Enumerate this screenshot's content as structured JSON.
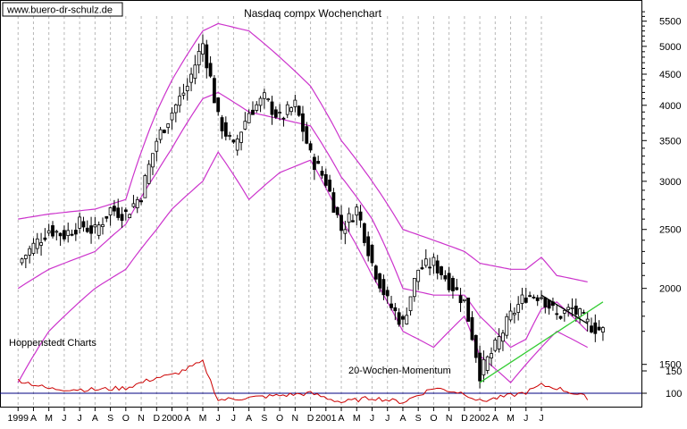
{
  "watermark": "www.buero-dr-schulz.de",
  "provider": "Hoppenstedt Charts",
  "chart_data": [
    {
      "type": "candlestick",
      "title": "Nasdaq compx Wochenchart",
      "y_scale": "log",
      "ylim": [
        1300,
        5800
      ],
      "y_ticks": [
        1500,
        2000,
        2500,
        3000,
        3500,
        4000,
        4500,
        5000,
        5500
      ],
      "x_ticks": [
        "1999",
        "A",
        "M",
        "J",
        "J",
        "A",
        "S",
        "O",
        "N",
        "D",
        "2000",
        "A",
        "M",
        "J",
        "J",
        "A",
        "S",
        "O",
        "N",
        "D",
        "2001",
        "A",
        "M",
        "J",
        "J",
        "A",
        "S",
        "O",
        "N",
        "D",
        "2002",
        "A",
        "M",
        "J",
        "J"
      ],
      "x_range": [
        "1999-03",
        "2002-07"
      ],
      "grid": "vertical dashed",
      "series": [
        {
          "kind": "ohlc-weekly",
          "color": "#000000",
          "points": [
            [
              "1999-03",
              2200
            ],
            [
              "1999-04",
              2350
            ],
            [
              "1999-05",
              2500
            ],
            [
              "1999-06",
              2450
            ],
            [
              "1999-07",
              2550
            ],
            [
              "1999-08",
              2480
            ],
            [
              "1999-09",
              2700
            ],
            [
              "1999-10",
              2650
            ],
            [
              "1999-11",
              2850
            ],
            [
              "1999-12",
              3500
            ],
            [
              "2000-01",
              3900
            ],
            [
              "2000-02",
              4300
            ],
            [
              "2000-03",
              5050
            ],
            [
              "2000-04",
              3800
            ],
            [
              "2000-05",
              3400
            ],
            [
              "2000-06",
              3900
            ],
            [
              "2000-07",
              4100
            ],
            [
              "2000-08",
              3800
            ],
            [
              "2000-09",
              4000
            ],
            [
              "2000-10",
              3300
            ],
            [
              "2000-11",
              3000
            ],
            [
              "2000-12",
              2500
            ],
            [
              "2001-01",
              2700
            ],
            [
              "2001-02",
              2200
            ],
            [
              "2001-03",
              1900
            ],
            [
              "2001-04",
              1750
            ],
            [
              "2001-05",
              2150
            ],
            [
              "2001-06",
              2200
            ],
            [
              "2001-07",
              2050
            ],
            [
              "2001-08",
              1900
            ],
            [
              "2001-09",
              1450
            ],
            [
              "2001-10",
              1600
            ],
            [
              "2001-11",
              1800
            ],
            [
              "2001-12",
              1950
            ],
            [
              "2002-01",
              1950
            ],
            [
              "2002-02",
              1800
            ],
            [
              "2002-03",
              1850
            ],
            [
              "2002-04",
              1750
            ],
            [
              "2002-05",
              1700
            ]
          ]
        },
        {
          "kind": "band-upper",
          "color": "#cc33cc",
          "points": [
            [
              "1999-03",
              2600
            ],
            [
              "1999-05",
              2650
            ],
            [
              "1999-08",
              2700
            ],
            [
              "1999-10",
              2800
            ],
            [
              "1999-12",
              3900
            ],
            [
              "2000-01",
              4400
            ],
            [
              "2000-03",
              5300
            ],
            [
              "2000-04",
              5450
            ],
            [
              "2000-06",
              5300
            ],
            [
              "2000-08",
              4800
            ],
            [
              "2000-10",
              4300
            ],
            [
              "2000-12",
              3500
            ],
            [
              "2001-02",
              3000
            ],
            [
              "2001-04",
              2500
            ],
            [
              "2001-06",
              2400
            ],
            [
              "2001-08",
              2300
            ],
            [
              "2001-09",
              2200
            ],
            [
              "2001-11",
              2150
            ],
            [
              "2001-12",
              2150
            ],
            [
              "2002-01",
              2250
            ],
            [
              "2002-02",
              2100
            ],
            [
              "2002-04",
              2050
            ]
          ]
        },
        {
          "kind": "band-middle",
          "color": "#cc33cc",
          "points": [
            [
              "1999-03",
              2000
            ],
            [
              "1999-05",
              2150
            ],
            [
              "1999-08",
              2300
            ],
            [
              "1999-10",
              2550
            ],
            [
              "1999-12",
              3100
            ],
            [
              "2000-01",
              3400
            ],
            [
              "2000-03",
              4100
            ],
            [
              "2000-04",
              4200
            ],
            [
              "2000-06",
              3900
            ],
            [
              "2000-08",
              3800
            ],
            [
              "2000-10",
              3700
            ],
            [
              "2000-12",
              3050
            ],
            [
              "2001-02",
              2600
            ],
            [
              "2001-04",
              2000
            ],
            [
              "2001-06",
              1950
            ],
            [
              "2001-08",
              1950
            ],
            [
              "2001-09",
              1800
            ],
            [
              "2001-11",
              1600
            ],
            [
              "2001-12",
              1650
            ],
            [
              "2002-01",
              1850
            ],
            [
              "2002-02",
              1900
            ],
            [
              "2002-04",
              1700
            ]
          ]
        },
        {
          "kind": "band-lower",
          "color": "#cc33cc",
          "points": [
            [
              "1999-03",
              1400
            ],
            [
              "1999-05",
              1700
            ],
            [
              "1999-08",
              2000
            ],
            [
              "1999-10",
              2150
            ],
            [
              "1999-12",
              2500
            ],
            [
              "2000-01",
              2700
            ],
            [
              "2000-03",
              3000
            ],
            [
              "2000-04",
              3350
            ],
            [
              "2000-06",
              2800
            ],
            [
              "2000-08",
              3100
            ],
            [
              "2000-10",
              3250
            ],
            [
              "2000-12",
              2600
            ],
            [
              "2001-02",
              2100
            ],
            [
              "2001-04",
              1700
            ],
            [
              "2001-06",
              1600
            ],
            [
              "2001-08",
              1800
            ],
            [
              "2001-09",
              1550
            ],
            [
              "2001-11",
              1400
            ],
            [
              "2001-12",
              1500
            ],
            [
              "2002-01",
              1600
            ],
            [
              "2002-02",
              1700
            ],
            [
              "2002-04",
              1600
            ]
          ]
        },
        {
          "kind": "trendline",
          "color": "#33cc33",
          "points": [
            [
              "2001-09",
              1400
            ],
            [
              "2002-05",
              1900
            ]
          ]
        },
        {
          "kind": "trendline",
          "color": "#000000",
          "points": [
            [
              "2002-01",
              1950
            ],
            [
              "2002-04",
              1750
            ]
          ]
        }
      ]
    },
    {
      "type": "line",
      "title": "20-Wochen-Momentum",
      "y_ticks": [
        100,
        150
      ],
      "baseline": 100,
      "ylim": [
        70,
        190
      ],
      "series": [
        {
          "color": "#cc0000",
          "points": [
            [
              "1999-03",
              130
            ],
            [
              "1999-05",
              110
            ],
            [
              "1999-08",
              108
            ],
            [
              "1999-10",
              112
            ],
            [
              "1999-12",
              135
            ],
            [
              "2000-01",
              140
            ],
            [
              "2000-03",
              170
            ],
            [
              "2000-04",
              85
            ],
            [
              "2000-06",
              90
            ],
            [
              "2000-08",
              95
            ],
            [
              "2000-10",
              100
            ],
            [
              "2000-12",
              80
            ],
            [
              "2001-02",
              90
            ],
            [
              "2001-04",
              80
            ],
            [
              "2001-06",
              112
            ],
            [
              "2001-08",
              100
            ],
            [
              "2001-09",
              82
            ],
            [
              "2001-11",
              95
            ],
            [
              "2001-12",
              102
            ],
            [
              "2002-01",
              118
            ],
            [
              "2002-02",
              112
            ],
            [
              "2002-04",
              90
            ]
          ]
        }
      ]
    }
  ]
}
